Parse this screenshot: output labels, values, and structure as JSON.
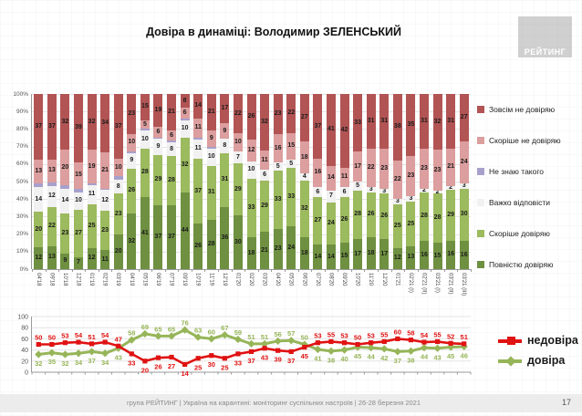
{
  "title": "Довіра в динаміці: Володимир ЗЕЛЕНСЬКИЙ",
  "logo_text": "РЕЙТИНГ",
  "footer": {
    "text": "група РЕЙТИНГ | Україна на карантині: моніторинг суспільних настроїв | 26-28 березня 2021",
    "page": "17"
  },
  "colors": {
    "fully_trust": "#6e9040",
    "rather_trust": "#9cba5e",
    "hard_to_say": "#f1f1f1",
    "dont_know_him": "#a8a0cc",
    "rather_distrust": "#dc9e9e",
    "fully_distrust": "#b25454",
    "line_distrust": "#e01212",
    "line_trust": "#96b558"
  },
  "chart_data": [
    {
      "type": "bar",
      "stacked": true,
      "title": "",
      "xlabel": "",
      "ylabel": "",
      "ylim": [
        0,
        100
      ],
      "yticks": [
        "0%",
        "10%",
        "20%",
        "30%",
        "40%",
        "50%",
        "60%",
        "70%",
        "80%",
        "90%",
        "100%"
      ],
      "grid": true,
      "legend_position": "right",
      "categories": [
        "04'18",
        "09'18",
        "10'18",
        "12'18",
        "01'19",
        "02'19",
        "03'19",
        "04'19",
        "05'19",
        "06'19",
        "07'19",
        "09'19",
        "10'19",
        "11'19",
        "12'19",
        "01'20",
        "02'20",
        "03'20",
        "04'20",
        "05'20",
        "06'20",
        "07'20",
        "08'20",
        "09'20",
        "10'20",
        "11'20",
        "12'20",
        "01'21",
        "02'21 (I)",
        "02'21 (II)",
        "03'21 (I)",
        "03'21 (II)",
        "03'21 (III)"
      ],
      "series": [
        {
          "name": "Повністю довіряю",
          "color": "#6e9040",
          "values": [
            12,
            13,
            9,
            7,
            12,
            11,
            20,
            32,
            41,
            37,
            37,
            44,
            26,
            28,
            36,
            30,
            18,
            21,
            23,
            24,
            18,
            14,
            14,
            15,
            17,
            18,
            17,
            12,
            13,
            16,
            15,
            16,
            16
          ]
        },
        {
          "name": "Скоріше довіряю",
          "color": "#9cba5e",
          "values": [
            20,
            22,
            23,
            27,
            25,
            23,
            23,
            26,
            28,
            29,
            28,
            32,
            37,
            31,
            31,
            29,
            33,
            29,
            33,
            33,
            32,
            27,
            24,
            26,
            28,
            26,
            26,
            25,
            25,
            28,
            28,
            29,
            30
          ]
        },
        {
          "name": "Важко відповісти",
          "color": "#f1f1f1",
          "values": [
            14,
            12,
            14,
            10,
            11,
            12,
            8,
            9,
            10,
            9,
            8,
            10,
            11,
            10,
            8,
            7,
            10,
            6,
            5,
            5,
            4,
            6,
            7,
            6,
            5,
            3,
            3,
            3,
            3,
            2,
            2,
            2,
            3
          ]
        },
        {
          "name": "Не знаю такого",
          "color": "#a8a0cc",
          "hide_labels": true,
          "values": [
            2,
            2,
            2,
            2,
            1,
            1,
            2,
            1,
            1,
            1,
            1,
            1,
            1,
            1,
            0,
            0,
            0,
            0,
            0,
            0,
            0,
            0,
            0,
            0,
            0,
            0,
            0,
            0,
            0,
            0,
            0,
            0,
            0
          ]
        },
        {
          "name": "Скоріше не довіряю",
          "color": "#dc9e9e",
          "values": [
            13,
            13,
            20,
            15,
            19,
            21,
            10,
            10,
            5,
            6,
            6,
            6,
            11,
            9,
            9,
            10,
            12,
            11,
            16,
            15,
            18,
            16,
            14,
            11,
            17,
            22,
            23,
            22,
            23,
            23,
            23,
            21,
            24
          ]
        },
        {
          "name": "Зовсім не довіряю",
          "color": "#b25454",
          "values": [
            37,
            37,
            32,
            39,
            32,
            34,
            37,
            23,
            15,
            19,
            21,
            8,
            14,
            21,
            17,
            22,
            26,
            32,
            23,
            22,
            27,
            37,
            41,
            42,
            33,
            31,
            31,
            38,
            35,
            31,
            32,
            31,
            27
          ]
        }
      ]
    },
    {
      "type": "line",
      "title": "",
      "xlabel": "",
      "ylabel": "",
      "ylim": [
        0,
        100
      ],
      "yticks": [
        0,
        20,
        40,
        60,
        80,
        100
      ],
      "grid": true,
      "legend_position": "right",
      "categories": [
        "04'18",
        "09'18",
        "10'18",
        "12'18",
        "01'19",
        "02'19",
        "03'19",
        "04'19",
        "05'19",
        "06'19",
        "07'19",
        "09'19",
        "10'19",
        "11'19",
        "12'19",
        "01'20",
        "02'20",
        "03'20",
        "04'20",
        "05'20",
        "06'20",
        "07'20",
        "08'20",
        "09'20",
        "10'20",
        "11'20",
        "12'20",
        "01'21",
        "02'21 (I)",
        "02'21 (II)",
        "03'21 (I)",
        "03'21 (II)",
        "03'21 (III)"
      ],
      "series": [
        {
          "name": "недовіра",
          "color": "#e01212",
          "marker": "square",
          "values": [
            50,
            50,
            53,
            54,
            51,
            54,
            47,
            33,
            20,
            26,
            27,
            14,
            25,
            30,
            25,
            33,
            37,
            43,
            39,
            37,
            45,
            53,
            55,
            53,
            50,
            53,
            55,
            60,
            58,
            54,
            55,
            52,
            51
          ]
        },
        {
          "name": "довіра",
          "color": "#96b558",
          "marker": "diamond",
          "values": [
            32,
            35,
            32,
            34,
            37,
            34,
            43,
            58,
            69,
            65,
            65,
            76,
            63,
            60,
            67,
            59,
            51,
            51,
            56,
            57,
            50,
            41,
            38,
            40,
            45,
            44,
            42,
            37,
            38,
            44,
            43,
            45,
            46
          ]
        }
      ]
    }
  ]
}
